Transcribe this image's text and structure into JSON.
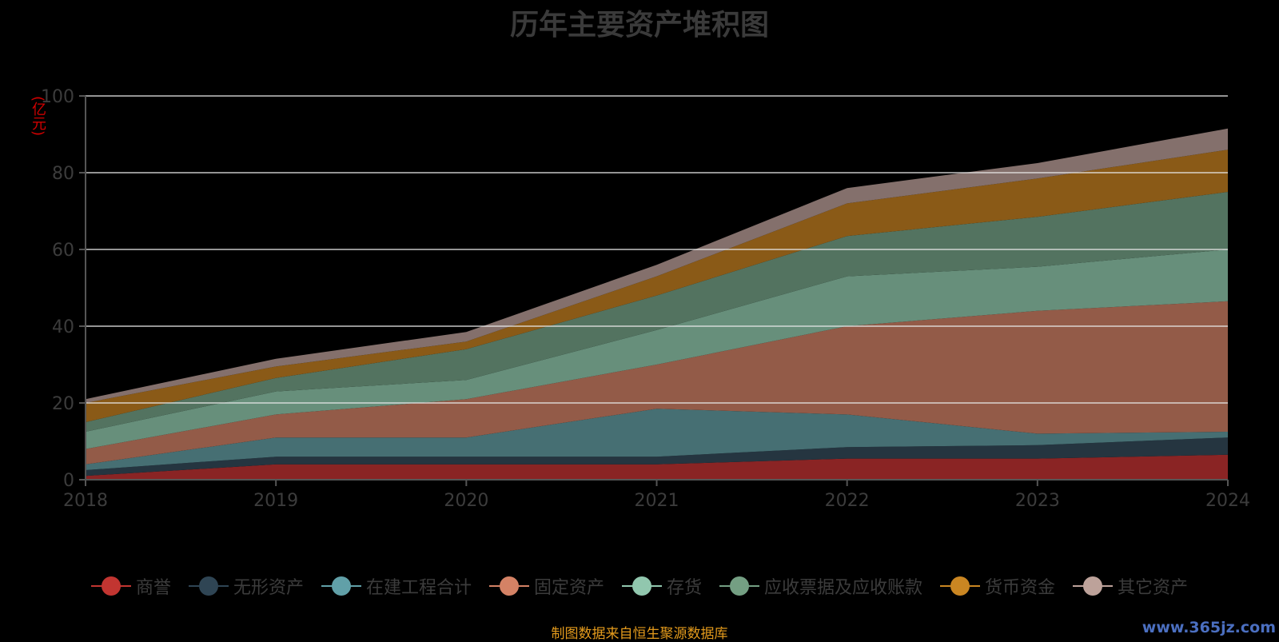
{
  "chart_data": {
    "type": "area",
    "title": "历年主要资产堆积图",
    "ylabel": "(亿元)",
    "xlabel": "",
    "ylim": [
      0,
      100
    ],
    "yticks": [
      0,
      20,
      40,
      60,
      80,
      100
    ],
    "categories": [
      "2018",
      "2019",
      "2020",
      "2021",
      "2022",
      "2023",
      "2024"
    ],
    "stacked": true,
    "grid": true,
    "legend_position": "bottom",
    "series": [
      {
        "name": "商誉",
        "color": "#8a2424",
        "legend_color": "#c23531",
        "values": [
          1,
          4,
          4,
          4,
          5.5,
          5.5,
          6.5
        ]
      },
      {
        "name": "无形资产",
        "color": "#253540",
        "legend_color": "#2f4554",
        "values": [
          1.5,
          2,
          2,
          2,
          3,
          3.5,
          4.5
        ]
      },
      {
        "name": "在建工程合计",
        "color": "#466f73",
        "legend_color": "#61a0a8",
        "values": [
          1.5,
          5,
          5,
          12.5,
          8.5,
          3,
          1.5
        ]
      },
      {
        "name": "固定资产",
        "color": "#935b48",
        "legend_color": "#d48265",
        "values": [
          4,
          6,
          10,
          11.5,
          23,
          32,
          34
        ]
      },
      {
        "name": "存货",
        "color": "#678f7b",
        "legend_color": "#91c7ae",
        "values": [
          4.5,
          6,
          5,
          9,
          13,
          11.5,
          13.5
        ]
      },
      {
        "name": "应收票据及应收账款",
        "color": "#537360",
        "legend_color": "#749f83",
        "values": [
          2.5,
          3.5,
          8,
          9,
          10.5,
          13,
          15
        ]
      },
      {
        "name": "货币资金",
        "color": "#8a5a17",
        "legend_color": "#ca8622",
        "values": [
          5,
          3,
          2,
          5,
          8.5,
          10,
          11
        ]
      },
      {
        "name": "其它资产",
        "color": "#84706c",
        "legend_color": "#bda29a",
        "values": [
          1,
          2,
          2.5,
          3,
          4,
          4,
          5.5
        ]
      }
    ]
  },
  "source_note": "制图数据来自恒生聚源数据库",
  "watermark": "www.365jz.com"
}
